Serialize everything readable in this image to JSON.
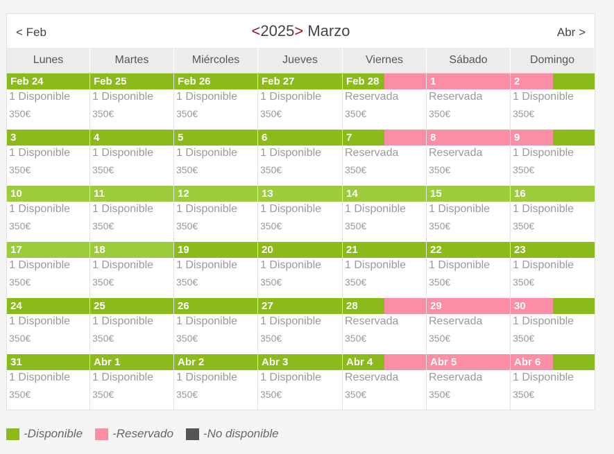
{
  "nav": {
    "prev_label": "< Feb",
    "next_label": "Abr >",
    "year_prev": "<",
    "year": "2025",
    "year_next": ">",
    "month": "Marzo"
  },
  "colors": {
    "available": "#8cba1b",
    "available_light": "#9ccb3b",
    "reserved": "#fb8da5",
    "unavailable": "#555555"
  },
  "weekdays": [
    "Lunes",
    "Martes",
    "Miércoles",
    "Jueves",
    "Viernes",
    "Sábado",
    "Domingo"
  ],
  "weeks": [
    [
      {
        "label": "Feb 24",
        "status": "1 Disponible",
        "price": "350€",
        "bar": "available"
      },
      {
        "label": "Feb 25",
        "status": "1 Disponible",
        "price": "350€",
        "bar": "available"
      },
      {
        "label": "Feb 26",
        "status": "1 Disponible",
        "price": "350€",
        "bar": "available"
      },
      {
        "label": "Feb 27",
        "status": "1 Disponible",
        "price": "350€",
        "bar": "available"
      },
      {
        "label": "Feb 28",
        "status": "Reservada",
        "price": "350€",
        "bar": "checkin"
      },
      {
        "label": "1",
        "status": "Reservada",
        "price": "350€",
        "bar": "reserved"
      },
      {
        "label": "2",
        "status": "1 Disponible",
        "price": "350€",
        "bar": "checkout"
      }
    ],
    [
      {
        "label": "3",
        "status": "1 Disponible",
        "price": "350€",
        "bar": "available"
      },
      {
        "label": "4",
        "status": "1 Disponible",
        "price": "350€",
        "bar": "available"
      },
      {
        "label": "5",
        "status": "1 Disponible",
        "price": "350€",
        "bar": "available"
      },
      {
        "label": "6",
        "status": "1 Disponible",
        "price": "350€",
        "bar": "available"
      },
      {
        "label": "7",
        "status": "Reservada",
        "price": "350€",
        "bar": "checkin"
      },
      {
        "label": "8",
        "status": "Reservada",
        "price": "350€",
        "bar": "reserved"
      },
      {
        "label": "9",
        "status": "1 Disponible",
        "price": "350€",
        "bar": "checkout"
      }
    ],
    [
      {
        "label": "10",
        "status": "1 Disponible",
        "price": "350€",
        "bar": "light"
      },
      {
        "label": "11",
        "status": "1 Disponible",
        "price": "350€",
        "bar": "light"
      },
      {
        "label": "12",
        "status": "1 Disponible",
        "price": "350€",
        "bar": "light"
      },
      {
        "label": "13",
        "status": "1 Disponible",
        "price": "350€",
        "bar": "light"
      },
      {
        "label": "14",
        "status": "1 Disponible",
        "price": "350€",
        "bar": "light"
      },
      {
        "label": "15",
        "status": "1 Disponible",
        "price": "350€",
        "bar": "light"
      },
      {
        "label": "16",
        "status": "1 Disponible",
        "price": "350€",
        "bar": "light"
      }
    ],
    [
      {
        "label": "17",
        "status": "1 Disponible",
        "price": "350€",
        "bar": "light"
      },
      {
        "label": "18",
        "status": "1 Disponible",
        "price": "350€",
        "bar": "light"
      },
      {
        "label": "19",
        "status": "1 Disponible",
        "price": "350€",
        "bar": "available"
      },
      {
        "label": "20",
        "status": "1 Disponible",
        "price": "350€",
        "bar": "available"
      },
      {
        "label": "21",
        "status": "1 Disponible",
        "price": "350€",
        "bar": "available"
      },
      {
        "label": "22",
        "status": "1 Disponible",
        "price": "350€",
        "bar": "available"
      },
      {
        "label": "23",
        "status": "1 Disponible",
        "price": "350€",
        "bar": "available"
      }
    ],
    [
      {
        "label": "24",
        "status": "1 Disponible",
        "price": "350€",
        "bar": "available"
      },
      {
        "label": "25",
        "status": "1 Disponible",
        "price": "350€",
        "bar": "available"
      },
      {
        "label": "26",
        "status": "1 Disponible",
        "price": "350€",
        "bar": "available"
      },
      {
        "label": "27",
        "status": "1 Disponible",
        "price": "350€",
        "bar": "available"
      },
      {
        "label": "28",
        "status": "Reservada",
        "price": "350€",
        "bar": "checkin"
      },
      {
        "label": "29",
        "status": "Reservada",
        "price": "350€",
        "bar": "reserved"
      },
      {
        "label": "30",
        "status": "1 Disponible",
        "price": "350€",
        "bar": "checkout"
      }
    ],
    [
      {
        "label": "31",
        "status": "1 Disponible",
        "price": "350€",
        "bar": "available"
      },
      {
        "label": "Abr 1",
        "status": "1 Disponible",
        "price": "350€",
        "bar": "available"
      },
      {
        "label": "Abr 2",
        "status": "1 Disponible",
        "price": "350€",
        "bar": "available"
      },
      {
        "label": "Abr 3",
        "status": "1 Disponible",
        "price": "350€",
        "bar": "available"
      },
      {
        "label": "Abr 4",
        "status": "Reservada",
        "price": "350€",
        "bar": "checkin"
      },
      {
        "label": "Abr 5",
        "status": "Reservada",
        "price": "350€",
        "bar": "reserved"
      },
      {
        "label": "Abr 6",
        "status": "1 Disponible",
        "price": "350€",
        "bar": "checkout"
      }
    ]
  ],
  "legend": [
    {
      "label": "-Disponible",
      "color": "#8cba1b"
    },
    {
      "label": "-Reservado",
      "color": "#fb8da5"
    },
    {
      "label": "-No disponible",
      "color": "#555555"
    }
  ]
}
